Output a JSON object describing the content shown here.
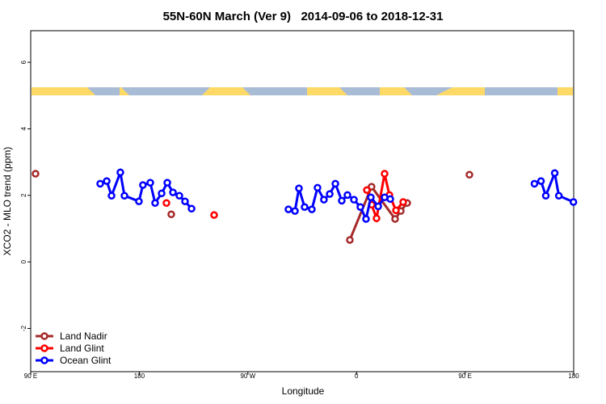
{
  "chart_data": {
    "type": "line",
    "title": "55N-60N March (Ver 9)   2014-09-06 to 2018-12-31",
    "x_label": "Longitude",
    "y_label": "XCO2 - MLO trend (ppm)",
    "xlim": [
      90,
      540
    ],
    "ylim": [
      -3.3,
      6.95
    ],
    "xticks": [
      {
        "value": 90,
        "label": "90 E"
      },
      180,
      {
        "value": 270,
        "label": "90 W"
      },
      {
        "value": 360,
        "label": "0"
      },
      {
        "value": 450,
        "label": "90 E"
      },
      {
        "value": 540,
        "label": "180"
      }
    ],
    "yticks": [
      -2,
      0,
      2,
      4,
      6
    ],
    "legend": "bottom-left",
    "series": [
      {
        "name": "Land Nadir",
        "color": "#a52a2a",
        "x": [
          94,
          null,
          206.5,
          null,
          354.5,
          372.5,
          392,
          396.7,
          402,
          null,
          453.6
        ],
        "values": [
          2.65,
          null,
          1.43,
          null,
          0.66,
          2.26,
          1.29,
          1.53,
          1.77,
          null,
          2.62
        ]
      },
      {
        "name": "Land Glint",
        "color": "#ff0000",
        "x": [
          202.5,
          null,
          242,
          null,
          368.6,
          372.6,
          376.6,
          383.3,
          387.3,
          392.7,
          398.7
        ],
        "values": [
          1.77,
          null,
          1.41,
          null,
          2.16,
          1.72,
          1.31,
          2.65,
          2.01,
          1.55,
          1.8
        ]
      },
      {
        "name": "Ocean Glint",
        "color": "#0000ff",
        "x": [
          147.6,
          153,
          157,
          164.3,
          167.7,
          179.7,
          183,
          189.1,
          193.1,
          198.5,
          203.2,
          207.9,
          213.2,
          217.9,
          223.3,
          null,
          303.6,
          309,
          312.3,
          317,
          323,
          327.7,
          333,
          337.8,
          342.5,
          347.8,
          352.5,
          357.9,
          363.2,
          367.9,
          371.9,
          378,
          383.3,
          388,
          null,
          507.5,
          512.9,
          516.9,
          524.3,
          527.7,
          539.8
        ],
        "values": [
          2.35,
          2.43,
          1.99,
          2.69,
          1.99,
          1.82,
          2.31,
          2.38,
          1.77,
          2.06,
          2.38,
          2.09,
          1.99,
          1.82,
          1.6,
          null,
          1.58,
          1.53,
          2.21,
          1.65,
          1.58,
          2.23,
          1.87,
          2.04,
          2.35,
          1.84,
          2.01,
          1.87,
          1.65,
          1.29,
          1.94,
          1.67,
          1.94,
          1.89,
          null,
          2.35,
          2.43,
          1.99,
          2.67,
          1.99,
          1.8
        ]
      }
    ]
  }
}
